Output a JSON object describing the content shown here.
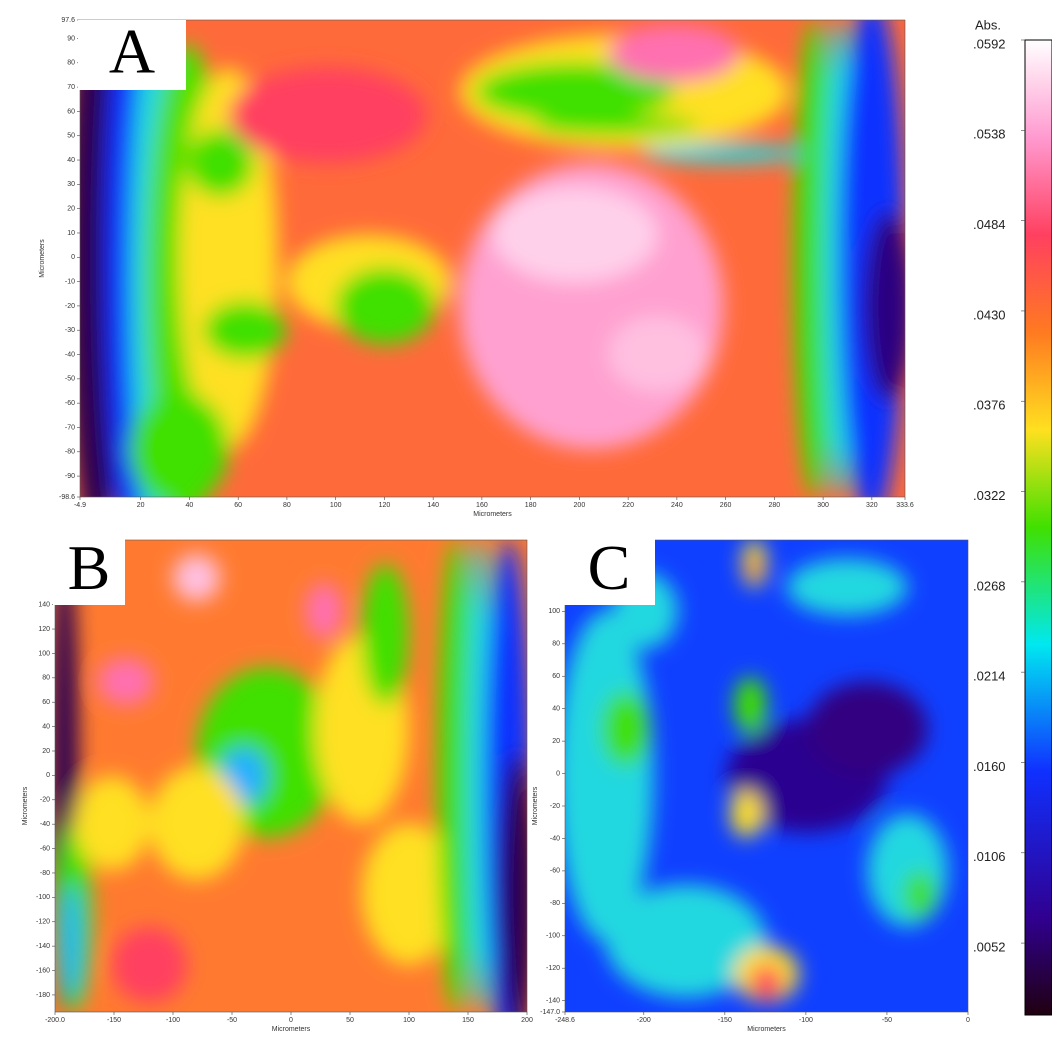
{
  "chart_data": [
    {
      "type": "contour",
      "label": "A",
      "xlabel": "Micrometers",
      "ylabel": "Micrometers",
      "xlim": [
        -4.9,
        333.6
      ],
      "ylim": [
        -98.6,
        97.6
      ],
      "xticks": [
        -4.9,
        20,
        40,
        60,
        80,
        100,
        120,
        140,
        160,
        180,
        200,
        220,
        240,
        260,
        280,
        300,
        320,
        333.6
      ],
      "yticks": [
        97.6,
        90,
        80,
        70,
        60,
        50,
        40,
        30,
        20,
        10,
        0,
        -10,
        -20,
        -30,
        -40,
        -50,
        -60,
        -70,
        -80,
        -90,
        -98.6
      ]
    },
    {
      "type": "contour",
      "label": "B",
      "xlabel": "Micrometers",
      "ylabel": "Micrometers",
      "xlim": [
        -200,
        200
      ],
      "ylim": [
        -194,
        193
      ],
      "xticks": [
        {
          "value": -200,
          "label": "-200.0"
        },
        -150,
        -100,
        -50,
        0,
        50,
        100,
        150,
        200
      ],
      "yticks": [
        140,
        120,
        100,
        80,
        60,
        40,
        20,
        0,
        -20,
        -40,
        -60,
        -80,
        -100,
        -120,
        -140,
        -160,
        -180
      ]
    },
    {
      "type": "contour",
      "label": "C",
      "xlabel": "Micrometers",
      "ylabel": "Micrometers",
      "xlim": [
        -248.6,
        0
      ],
      "ylim": [
        -147,
        144
      ],
      "xticks": [
        -248.6,
        -200,
        -150,
        -100,
        -50,
        0
      ],
      "yticks": [
        100,
        80,
        60,
        40,
        20,
        0,
        -20,
        -40,
        -60,
        -80,
        -100,
        -120,
        -140,
        {
          "value": -147,
          "label": "-147.0"
        }
      ]
    }
  ],
  "colorbar": {
    "title": "Abs.",
    "lim": [
      0.0009,
      0.0592
    ],
    "ticks": [
      {
        "value": 0.0592,
        "label": ".0592"
      },
      {
        "value": 0.0538,
        "label": ".0538"
      },
      {
        "value": 0.0484,
        "label": ".0484"
      },
      {
        "value": 0.043,
        "label": ".0430"
      },
      {
        "value": 0.0376,
        "label": ".0376"
      },
      {
        "value": 0.0322,
        "label": ".0322"
      },
      {
        "value": 0.0268,
        "label": ".0268"
      },
      {
        "value": 0.0214,
        "label": ".0214"
      },
      {
        "value": 0.016,
        "label": ".0160"
      },
      {
        "value": 0.0106,
        "label": ".0106"
      },
      {
        "value": 0.0052,
        "label": ".0052"
      }
    ]
  }
}
